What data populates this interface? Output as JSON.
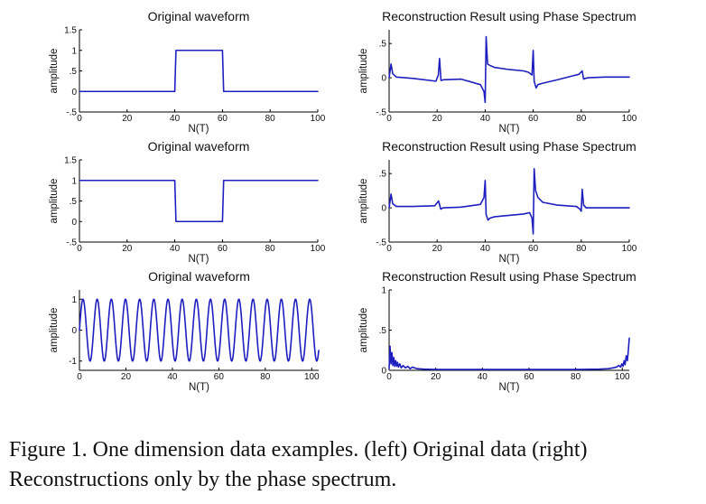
{
  "caption": {
    "line1": "Figure 1. One dimension data examples. (left) Original data (right)",
    "line2": "Reconstructions only by the phase spectrum."
  },
  "colors": {
    "series": "#1f1fbf",
    "axis": "#000000"
  },
  "chart_data": [
    {
      "type": "line",
      "title": "Original waveform",
      "xlabel": "N(T)",
      "ylabel": "amplitude",
      "xlim": [
        0,
        100
      ],
      "ylim": [
        -0.5,
        1.5
      ],
      "xticks": [
        0,
        20,
        40,
        60,
        80,
        100
      ],
      "yticks": [
        -0.5,
        0,
        0.5,
        1,
        1.5
      ],
      "series": [
        {
          "x": [
            0,
            40,
            40.5,
            60,
            60.5,
            100
          ],
          "y": [
            0,
            0,
            1,
            1,
            0,
            0
          ]
        }
      ]
    },
    {
      "type": "line",
      "title": "Reconstruction Result using Phase Spectrum",
      "xlabel": "N(T)",
      "ylabel": "amplitude",
      "xlim": [
        0,
        100
      ],
      "ylim": [
        -0.5,
        0.7
      ],
      "xticks": [
        0,
        20,
        40,
        60,
        80,
        100
      ],
      "yticks": [
        -0.5,
        0,
        0.5
      ],
      "series": [
        {
          "x": [
            0,
            0.8,
            1.5,
            3,
            10,
            19.5,
            20.5,
            21,
            21.6,
            22.5,
            30,
            38,
            39.5,
            40,
            40.4,
            41,
            42,
            44,
            50,
            56,
            58,
            59.5,
            60,
            60.4,
            61.2,
            62,
            64,
            70,
            79,
            80.4,
            81,
            81.6,
            83,
            90,
            100
          ],
          "y": [
            0,
            0.2,
            0.06,
            0.01,
            -0.01,
            -0.05,
            0.04,
            0.28,
            -0.04,
            -0.03,
            -0.02,
            -0.1,
            -0.2,
            -0.36,
            0.6,
            0.2,
            0.18,
            0.15,
            0.12,
            0.1,
            0.08,
            0.04,
            0.4,
            -0.05,
            -0.15,
            -0.1,
            -0.08,
            -0.03,
            0.05,
            0.1,
            -0.02,
            -0.01,
            0,
            0.01,
            0.01
          ]
        }
      ]
    },
    {
      "type": "line",
      "title": "Original waveform",
      "xlabel": "N(T)",
      "ylabel": "amplitude",
      "xlim": [
        0,
        100
      ],
      "ylim": [
        -0.5,
        1.5
      ],
      "xticks": [
        0,
        20,
        40,
        60,
        80,
        100
      ],
      "yticks": [
        -0.5,
        0,
        0.5,
        1,
        1.5
      ],
      "series": [
        {
          "x": [
            0,
            40,
            40.5,
            60,
            60.5,
            100
          ],
          "y": [
            1,
            1,
            0,
            0,
            1,
            1
          ]
        }
      ]
    },
    {
      "type": "line",
      "title": "Reconstruction Result using Phase Spectrum",
      "xlabel": "N(T)",
      "ylabel": "amplitude",
      "xlim": [
        0,
        100
      ],
      "ylim": [
        -0.5,
        0.7
      ],
      "xticks": [
        0,
        20,
        40,
        60,
        80,
        100
      ],
      "yticks": [
        -0.5,
        0,
        0.5
      ],
      "series": [
        {
          "x": [
            0,
            0.8,
            1.5,
            3,
            10,
            19,
            20.6,
            21.5,
            22.5,
            30,
            38,
            39.5,
            40,
            40.4,
            41.2,
            42,
            44,
            50,
            56,
            58.5,
            59.5,
            60,
            60.4,
            61,
            62,
            64,
            70,
            78,
            79.5,
            80,
            80.4,
            81,
            82,
            90,
            100
          ],
          "y": [
            0,
            0.2,
            0.06,
            0.02,
            0.02,
            0.03,
            0.1,
            -0.02,
            0,
            0.01,
            0.05,
            0.15,
            0.4,
            -0.1,
            -0.18,
            -0.15,
            -0.13,
            -0.11,
            -0.09,
            -0.07,
            -0.15,
            -0.38,
            0.57,
            0.25,
            0.15,
            0.08,
            0.04,
            0.02,
            -0.02,
            -0.05,
            0.27,
            0.04,
            0,
            0,
            0
          ]
        }
      ]
    },
    {
      "type": "line",
      "title": "Original waveform",
      "xlabel": "N(T)",
      "ylabel": "amplitude",
      "xlim": [
        0,
        103
      ],
      "ylim": [
        -1.3,
        1.3
      ],
      "xticks": [
        0,
        20,
        40,
        60,
        80,
        100
      ],
      "yticks": [
        -1,
        0,
        1
      ],
      "series": [
        {
          "function": "sine",
          "amplitude": 1,
          "period": 6.1,
          "x_start": 0,
          "x_end": 103
        }
      ]
    },
    {
      "type": "line",
      "title": "Reconstruction Result using Phase Spectrum",
      "xlabel": "N(T)",
      "ylabel": "amplitude",
      "xlim": [
        0,
        103
      ],
      "ylim": [
        0,
        1
      ],
      "xticks": [
        0,
        20,
        40,
        60,
        80,
        100
      ],
      "yticks": [
        0,
        0.5,
        1
      ],
      "series": [
        {
          "x": [
            0,
            0.4,
            0.8,
            1.2,
            1.6,
            2,
            2.4,
            2.8,
            3.2,
            3.6,
            4,
            4.6,
            5.2,
            6,
            7,
            8,
            9,
            10,
            12,
            15,
            20,
            40,
            60,
            80,
            90,
            94,
            96,
            97.5,
            98.5,
            99.3,
            99.8,
            100.3,
            100.8,
            101.2,
            101.7,
            102.2,
            102.7,
            103
          ],
          "y": [
            0.02,
            0.3,
            0.08,
            0.22,
            0.06,
            0.16,
            0.05,
            0.12,
            0.05,
            0.1,
            0.04,
            0.08,
            0.03,
            0.06,
            0.03,
            0.05,
            0.02,
            0.04,
            0.02,
            0.015,
            0.01,
            0.01,
            0.01,
            0.01,
            0.015,
            0.02,
            0.03,
            0.04,
            0.06,
            0.04,
            0.08,
            0.05,
            0.12,
            0.07,
            0.18,
            0.12,
            0.28,
            0.4
          ]
        }
      ]
    }
  ]
}
